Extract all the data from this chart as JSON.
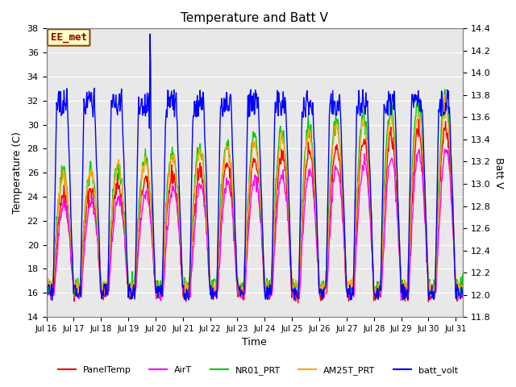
{
  "title": "Temperature and Batt V",
  "xlabel": "Time",
  "ylabel_left": "Temperature (C)",
  "ylabel_right": "Batt V",
  "ylim_left": [
    14,
    38
  ],
  "ylim_right": [
    11.8,
    14.4
  ],
  "xtick_labels": [
    "Jul 16",
    "Jul 17",
    "Jul 18",
    "Jul 19",
    "Jul 20",
    "Jul 21",
    "Jul 22",
    "Jul 23",
    "Jul 24",
    "Jul 25",
    "Jul 26",
    "Jul 27",
    "Jul 28",
    "Jul 29",
    "Jul 30",
    "Jul 31"
  ],
  "annotation_text": "EE_met",
  "annotation_color": "#8B0000",
  "annotation_bg": "#FFFFC0",
  "annotation_edge": "#8B4513",
  "bg_color": "#E8E8E8",
  "fig_bg": "#FFFFFF",
  "legend": [
    "PanelTemp",
    "AirT",
    "NR01_PRT",
    "AM25T_PRT",
    "batt_volt"
  ],
  "colors": [
    "#FF0000",
    "#FF00FF",
    "#00CC00",
    "#FFA500",
    "#0000FF"
  ],
  "linewidth": 1.0
}
